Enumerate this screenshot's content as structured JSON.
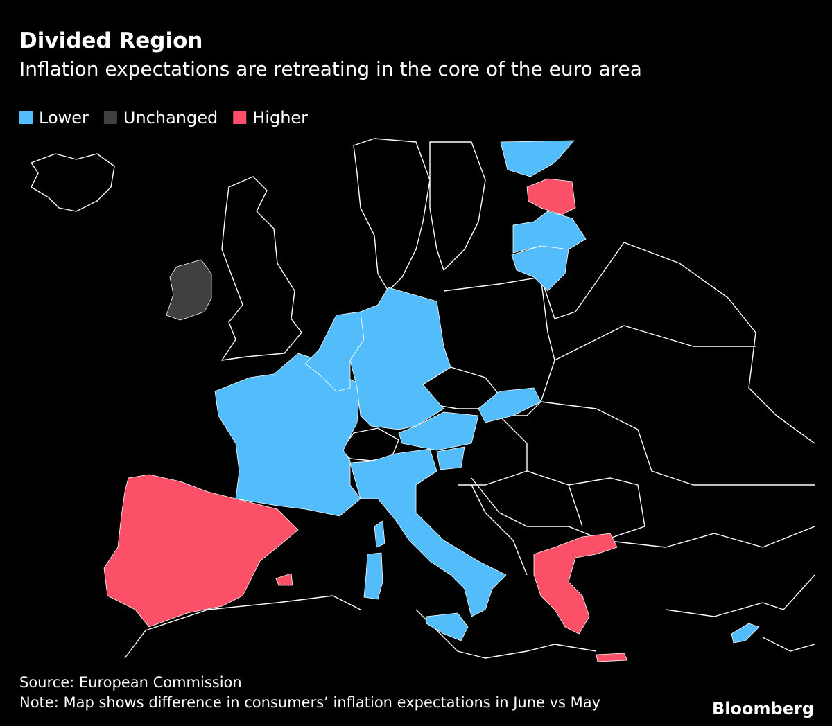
{
  "title": "Divided Region",
  "subtitle": "Inflation expectations are retreating in the core of the euro area",
  "legend": [
    {
      "name": "Lower",
      "color": "#52bdfa"
    },
    {
      "name": "Unchanged",
      "color": "#404040"
    },
    {
      "name": "Higher",
      "color": "#fb5067"
    }
  ],
  "source": "Source: European Commission",
  "note": "Note: Map shows difference in consumers’ inflation expectations in June vs May",
  "brand": "Bloomberg"
}
